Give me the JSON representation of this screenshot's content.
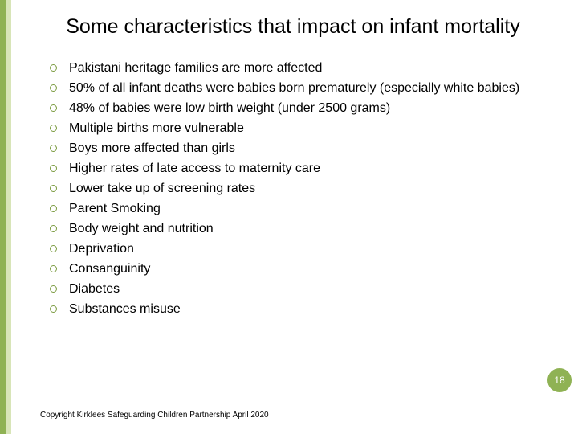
{
  "title": "Some characteristics that impact on infant mortality",
  "bullets": [
    "Pakistani heritage families are more affected",
    "50% of all infant deaths were babies born prematurely (especially white babies)",
    "48% of babies were low birth weight (under 2500 grams)",
    "Multiple births more vulnerable",
    "Boys more affected than girls",
    "Higher rates of late access to maternity care",
    "Lower take up of screening rates",
    "Parent Smoking",
    "Body weight and nutrition",
    "Deprivation",
    "Consanguinity",
    "Diabetes",
    "Substances misuse"
  ],
  "footer": "Copyright Kirklees Safeguarding Children Partnership April 2020",
  "page_number": "18",
  "colors": {
    "stripe_dark": "#8fb254",
    "stripe_light": "#d8e5b8",
    "bullet_ring": "#7a9a3f",
    "badge_bg": "#8fb254",
    "badge_text": "#ffffff",
    "text": "#000000",
    "background": "#ffffff"
  }
}
